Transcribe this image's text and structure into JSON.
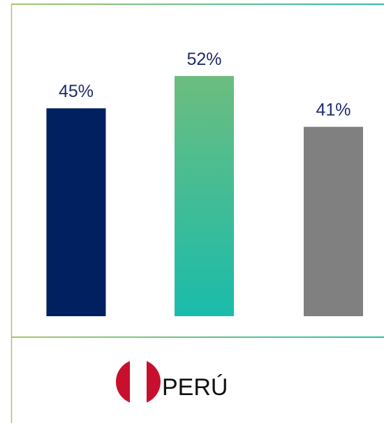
{
  "chart_data": {
    "type": "bar",
    "categories": [
      null,
      null,
      null
    ],
    "values": [
      45,
      52,
      41
    ],
    "value_labels": [
      "45%",
      "52%",
      "41%"
    ],
    "colors": [
      "#002060",
      [
        "#6cbd7f",
        "#1abcab"
      ],
      "#808080"
    ],
    "ylim": [
      0,
      68
    ]
  },
  "footer": {
    "country": "PERÚ"
  }
}
